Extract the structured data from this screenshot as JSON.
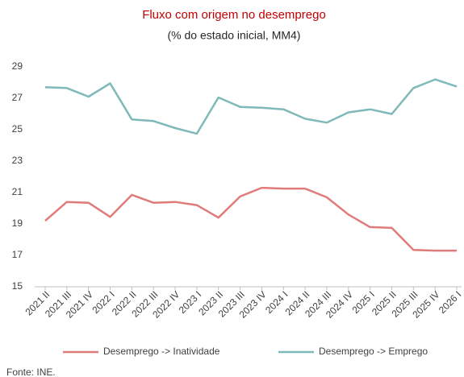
{
  "chart_data": {
    "type": "line",
    "title": "Fluxo com origem no desemprego",
    "subtitle": "(% do estado inicial, MM4)",
    "categories": [
      "2021 II",
      "2021 III",
      "2021 IV",
      "2022 I",
      "2022 II",
      "2022 III",
      "2022 IV",
      "2023 I",
      "2023 II",
      "2023 III",
      "2023 IV",
      "2024 I",
      "2024 II",
      "2024 III",
      "2024 IV",
      "2025 I",
      "2025 II",
      "2025 III",
      "2025 IV",
      "2026 I"
    ],
    "series": [
      {
        "name": "Desemprego -> Inatividade",
        "color": "#e07b7b",
        "values": [
          19.2,
          20.4,
          20.35,
          19.45,
          20.85,
          20.35,
          20.4,
          20.2,
          19.4,
          20.75,
          21.3,
          21.25,
          21.25,
          20.7,
          19.6,
          18.8,
          18.75,
          17.35,
          17.3,
          17.3
        ]
      },
      {
        "name": "Desemprego -> Emprego",
        "color": "#7fb9b9",
        "values": [
          27.7,
          27.65,
          27.1,
          27.95,
          25.65,
          25.55,
          25.1,
          24.75,
          27.05,
          26.45,
          26.4,
          26.3,
          25.7,
          25.45,
          26.1,
          26.3,
          26.0,
          27.65,
          28.2,
          27.75
        ]
      }
    ],
    "ylim": [
      15,
      29
    ],
    "yticks": [
      15,
      17,
      19,
      21,
      23,
      25,
      27,
      29
    ],
    "grid": false,
    "source": "Fonte: INE."
  }
}
